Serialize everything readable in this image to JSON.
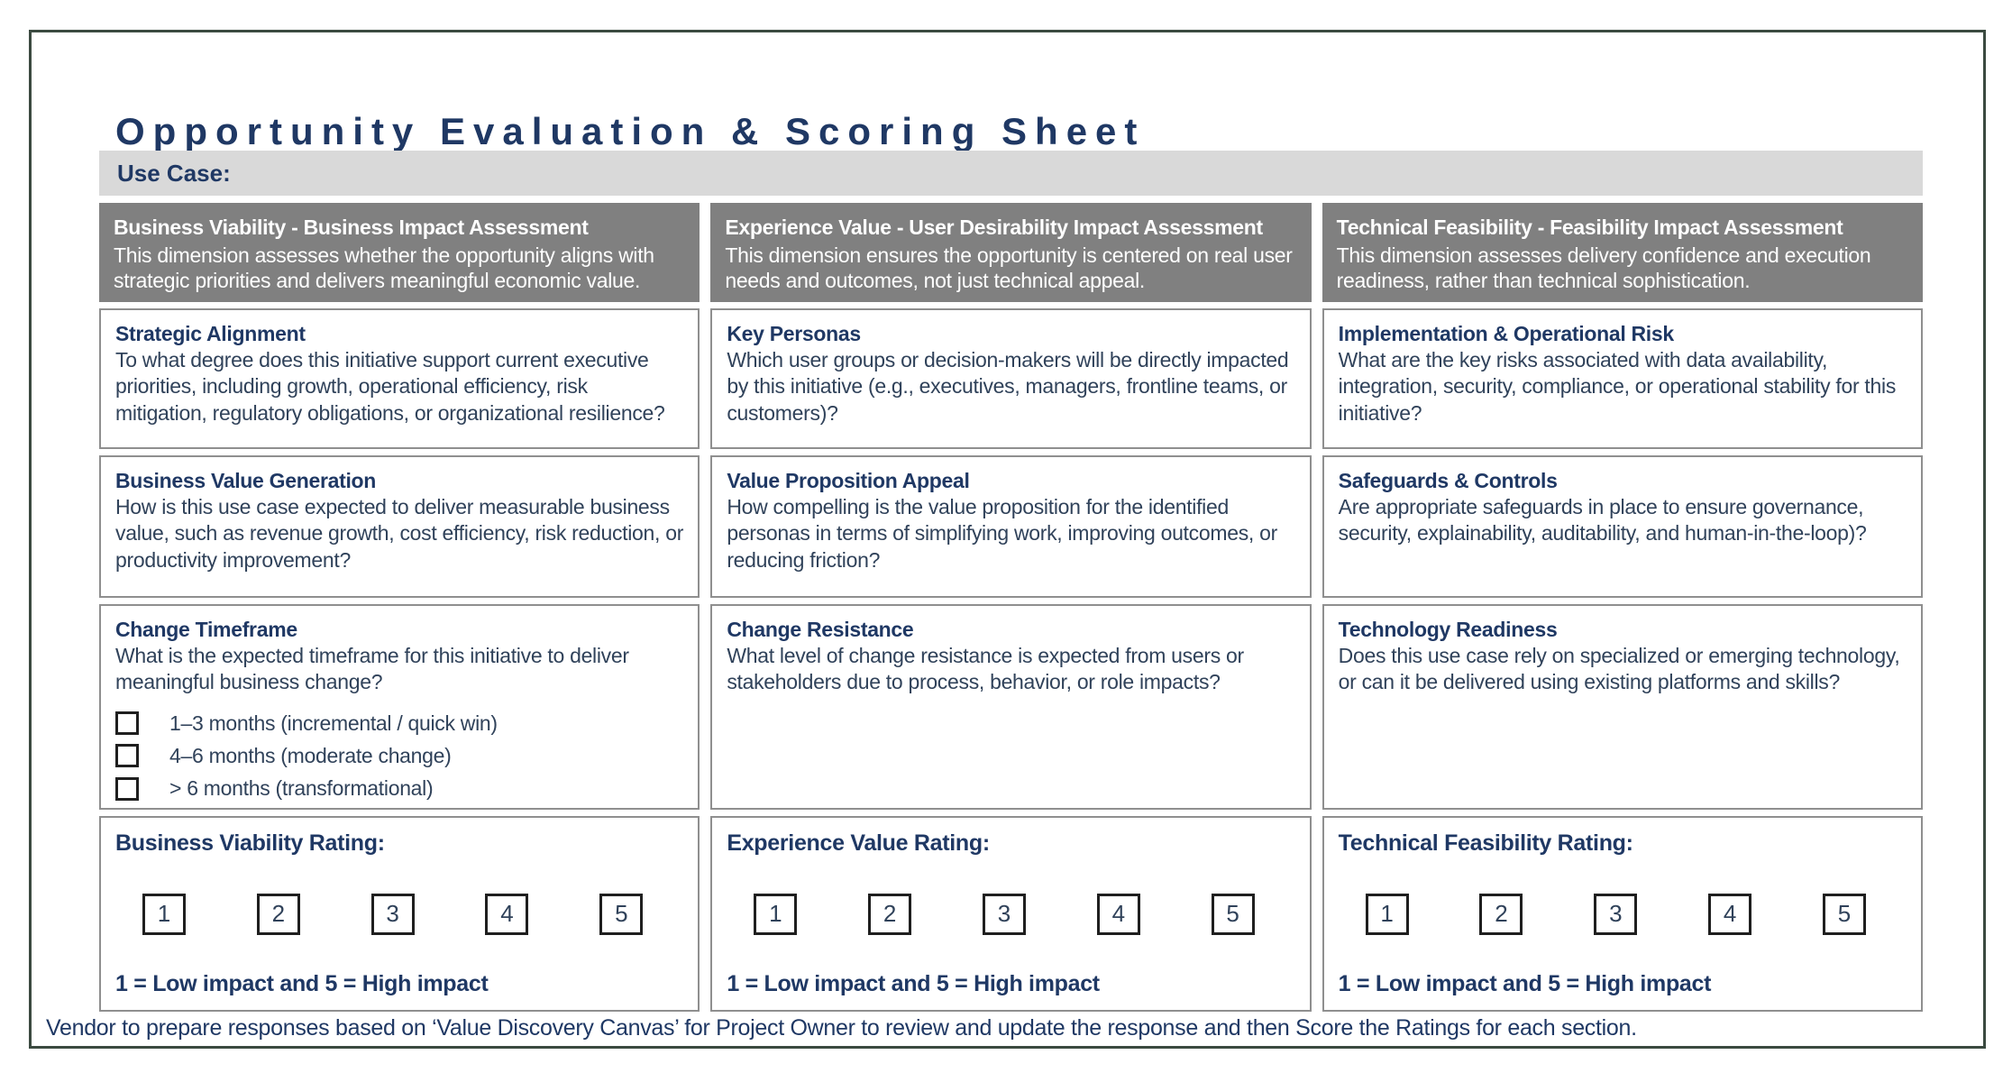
{
  "page": {
    "title": "Opportunity Evaluation & Scoring Sheet",
    "use_case_label": "Use Case:",
    "use_case_value": "",
    "footer": "Vendor to prepare responses based on ‘Value Discovery Canvas’ for Project Owner to review and update the response and then Score the Ratings for each section."
  },
  "colors": {
    "accent_navy": "#1f3864",
    "body_slate": "#30425a",
    "column_header_gray": "#808080",
    "use_case_bar_gray": "#d9d9d9",
    "cell_border_gray": "#8f8f8f",
    "frame_border": "#3b4a40"
  },
  "columns": [
    {
      "id": "business-viability",
      "header": {
        "title": "Business Viability - Business Impact Assessment",
        "description": "This dimension assesses whether the opportunity aligns with strategic priorities and delivers meaningful economic value."
      },
      "sections": [
        {
          "title": "Strategic Alignment",
          "question": "To what degree does this initiative support current executive priorities, including growth, operational efficiency, risk mitigation, regulatory obligations, or organizational resilience?"
        },
        {
          "title": "Business Value Generation",
          "question": "How is this use case expected to deliver measurable business value, such as revenue growth, cost efficiency, risk reduction, or productivity improvement?"
        },
        {
          "title": "Change Timeframe",
          "question": "What is the expected timeframe for this initiative to deliver meaningful business change?",
          "checkbox_options": [
            "1–3 months (incremental / quick win)",
            "4–6 months (moderate change)",
            "> 6 months (transformational)"
          ]
        }
      ],
      "rating": {
        "label": "Business Viability Rating:",
        "scale": [
          "1",
          "2",
          "3",
          "4",
          "5"
        ],
        "legend": "1 = Low impact and 5 = High impact"
      }
    },
    {
      "id": "experience-value",
      "header": {
        "title": "Experience Value - User Desirability Impact Assessment",
        "description": "This dimension ensures the opportunity is centered on real user needs and outcomes, not just technical appeal."
      },
      "sections": [
        {
          "title": "Key Personas",
          "question": "Which user groups or decision-makers will be directly impacted by this initiative (e.g., executives, managers, frontline teams, or customers)?"
        },
        {
          "title": "Value Proposition Appeal",
          "question": "How compelling is the value proposition for the identified personas in terms of simplifying work, improving outcomes, or reducing friction?"
        },
        {
          "title": "Change Resistance",
          "question": "What level of change resistance is expected from users or stakeholders due to process, behavior, or role impacts?"
        }
      ],
      "rating": {
        "label": "Experience Value Rating:",
        "scale": [
          "1",
          "2",
          "3",
          "4",
          "5"
        ],
        "legend": "1 = Low impact and 5 = High impact"
      }
    },
    {
      "id": "technical-feasibility",
      "header": {
        "title": "Technical Feasibility - Feasibility Impact Assessment",
        "description": "This dimension assesses delivery confidence and execution readiness, rather than technical sophistication."
      },
      "sections": [
        {
          "title": "Implementation & Operational Risk",
          "question": "What are the key risks associated with data availability, integration, security, compliance, or operational stability for this initiative?"
        },
        {
          "title": "Safeguards & Controls",
          "question": "Are appropriate safeguards in place to ensure governance, security, explainability, auditability, and human-in-the-loop)?"
        },
        {
          "title": "Technology Readiness",
          "question": "Does this use case rely on specialized or emerging technology, or can it be delivered using existing platforms and skills?"
        }
      ],
      "rating": {
        "label": "Technical Feasibility Rating:",
        "scale": [
          "1",
          "2",
          "3",
          "4",
          "5"
        ],
        "legend": "1 = Low impact and 5 = High impact"
      }
    }
  ]
}
